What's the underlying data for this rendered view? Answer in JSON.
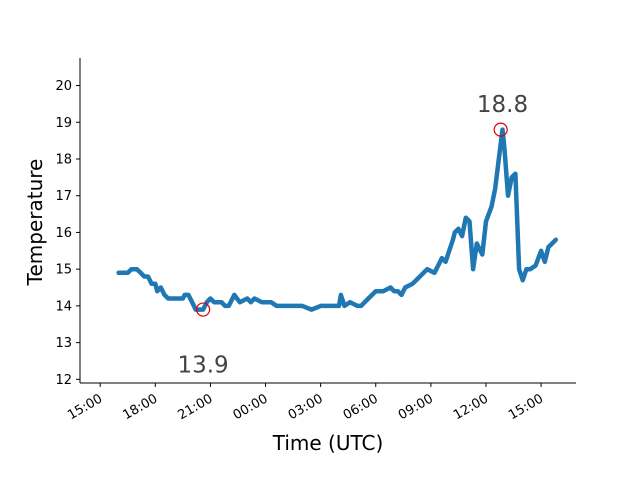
{
  "chart_data": {
    "type": "line",
    "xlabel": "Time (UTC)",
    "ylabel": "Temperature",
    "x_tick_labels": [
      "15:00",
      "18:00",
      "21:00",
      "00:00",
      "03:00",
      "06:00",
      "09:00",
      "12:00",
      "15:00"
    ],
    "x_tick_hours": [
      0,
      3,
      6,
      9,
      12,
      15,
      18,
      21,
      24
    ],
    "xlim_hours": [
      -1.1,
      25.9
    ],
    "y_ticks": [
      12,
      13,
      14,
      15,
      16,
      17,
      18,
      19,
      20
    ],
    "ylim": [
      11.9,
      20.75
    ],
    "grid": false,
    "series": [
      {
        "color": "#1f77b4",
        "x_hours": [
          1.0,
          1.5,
          1.7,
          2.0,
          2.2,
          2.4,
          2.6,
          2.8,
          3.0,
          3.1,
          3.3,
          3.5,
          3.7,
          3.9,
          4.1,
          4.3,
          4.5,
          4.6,
          4.8,
          5.0,
          5.2,
          5.4,
          5.6,
          5.8,
          6.0,
          6.2,
          6.4,
          6.6,
          6.8,
          7.0,
          7.3,
          7.6,
          8.0,
          8.2,
          8.4,
          8.8,
          9.0,
          9.3,
          9.6,
          10.0,
          10.5,
          11.0,
          11.5,
          12.0,
          12.2,
          12.4,
          12.7,
          13.0,
          13.1,
          13.3,
          13.6,
          14.0,
          14.2,
          14.4,
          14.6,
          15.0,
          15.4,
          15.8,
          16.0,
          16.2,
          16.4,
          16.6,
          17.0,
          17.4,
          17.8,
          18.2,
          18.4,
          18.6,
          18.8,
          19.0,
          19.2,
          19.3,
          19.5,
          19.7,
          19.9,
          20.1,
          20.3,
          20.5,
          20.6,
          20.8,
          21.0,
          21.3,
          21.5,
          21.7,
          21.9,
          22.0,
          22.2,
          22.4,
          22.6,
          22.8,
          23.0,
          23.2,
          23.4,
          23.7,
          24.0,
          24.2,
          24.4,
          24.6,
          24.8
        ],
        "y": [
          14.9,
          14.9,
          15.0,
          15.0,
          14.9,
          14.8,
          14.8,
          14.6,
          14.6,
          14.4,
          14.5,
          14.3,
          14.2,
          14.2,
          14.2,
          14.2,
          14.2,
          14.3,
          14.3,
          14.1,
          13.9,
          13.9,
          13.9,
          14.1,
          14.2,
          14.1,
          14.1,
          14.1,
          14.0,
          14.0,
          14.3,
          14.1,
          14.2,
          14.1,
          14.2,
          14.1,
          14.1,
          14.1,
          14.0,
          14.0,
          14.0,
          14.0,
          13.9,
          14.0,
          14.0,
          14.0,
          14.0,
          14.0,
          14.3,
          14.0,
          14.1,
          14.0,
          14.0,
          14.1,
          14.2,
          14.4,
          14.4,
          14.5,
          14.4,
          14.4,
          14.3,
          14.5,
          14.6,
          14.8,
          15.0,
          14.9,
          15.1,
          15.3,
          15.2,
          15.5,
          15.8,
          16.0,
          16.1,
          15.9,
          16.4,
          16.3,
          15.0,
          15.7,
          15.6,
          15.4,
          16.3,
          16.7,
          17.2,
          18.0,
          18.8,
          18.3,
          17.0,
          17.5,
          17.6,
          15.0,
          14.7,
          15.0,
          15.0,
          15.1,
          15.5,
          15.2,
          15.6,
          15.7,
          15.8
        ]
      }
    ],
    "annotations": [
      {
        "label": "13.9",
        "x_hours": 5.6,
        "y": 13.9,
        "marker": "min",
        "marker_color": "#e00000",
        "text_x_hours": 5.6,
        "text_y": 12.4
      },
      {
        "label": "18.8",
        "x_hours": 21.8,
        "y": 18.8,
        "marker": "max",
        "marker_color": "#e00000",
        "text_x_hours": 21.9,
        "text_y": 19.5
      }
    ]
  }
}
